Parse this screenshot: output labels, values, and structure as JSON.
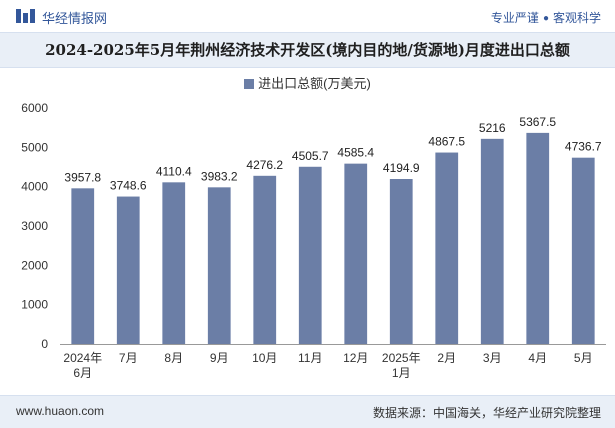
{
  "header": {
    "brand": "华经情报网",
    "slogan_left": "专业严谨",
    "slogan_right": "客观科学"
  },
  "footer": {
    "site": "www.huaon.com",
    "source_label": "数据来源：",
    "source_text": "中国海关，华经产业研究院整理"
  },
  "colors": {
    "bar": "#6b7ea6",
    "accent": "#33579a",
    "title_band": "#e9eff7"
  },
  "chart_data": {
    "type": "bar",
    "title": "2024-2025年5月年荆州经济技术开发区(境内目的地/货源地)月度进出口总额",
    "legend": [
      "进出口总额(万美元)"
    ],
    "legend_position": "top-center",
    "categories": [
      [
        "2024年",
        "6月"
      ],
      [
        "7月"
      ],
      [
        "8月"
      ],
      [
        "9月"
      ],
      [
        "10月"
      ],
      [
        "11月"
      ],
      [
        "12月"
      ],
      [
        "2025年",
        "1月"
      ],
      [
        "2月"
      ],
      [
        "3月"
      ],
      [
        "4月"
      ],
      [
        "5月"
      ]
    ],
    "series": [
      {
        "name": "进出口总额(万美元)",
        "values": [
          3957.8,
          3748.6,
          4110.4,
          3983.2,
          4276.2,
          4505.7,
          4585.4,
          4194.9,
          4867.5,
          5216,
          5367.5,
          4736.7
        ],
        "labels": [
          "3957.8",
          "3748.6",
          "4110.4",
          "3983.2",
          "4276.2",
          "4505.7",
          "4585.4",
          "4194.9",
          "4867.5",
          "5216",
          "5367.5",
          "4736.7"
        ]
      }
    ],
    "yticks": [
      "0",
      "1000",
      "2000",
      "3000",
      "4000",
      "5000",
      "6000"
    ],
    "ylim": [
      0,
      6000
    ],
    "grid": false
  }
}
